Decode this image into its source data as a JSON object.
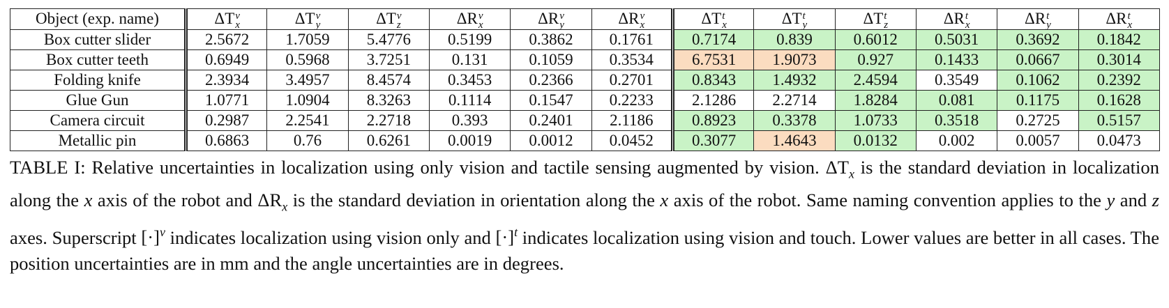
{
  "table": {
    "name_header": "Object (exp. name)",
    "columns": [
      {
        "base": "ΔT",
        "sub": "x",
        "sup": "v"
      },
      {
        "base": "ΔT",
        "sub": "y",
        "sup": "v"
      },
      {
        "base": "ΔT",
        "sub": "z",
        "sup": "v"
      },
      {
        "base": "ΔR",
        "sub": "x",
        "sup": "v"
      },
      {
        "base": "ΔR",
        "sub": "y",
        "sup": "v"
      },
      {
        "base": "ΔR",
        "sub": "x",
        "sup": "v"
      },
      {
        "base": "ΔT",
        "sub": "x",
        "sup": "t"
      },
      {
        "base": "ΔT",
        "sub": "y",
        "sup": "t"
      },
      {
        "base": "ΔT",
        "sub": "z",
        "sup": "t"
      },
      {
        "base": "ΔR",
        "sub": "x",
        "sup": "t"
      },
      {
        "base": "ΔR",
        "sub": "y",
        "sup": "t"
      },
      {
        "base": "ΔR",
        "sub": "x",
        "sup": "t"
      }
    ],
    "rows": [
      {
        "name": "Box cutter slider",
        "values": [
          "2.5672",
          "1.7059",
          "5.4776",
          "0.5199",
          "0.3862",
          "0.1761",
          "0.7174",
          "0.839",
          "0.6012",
          "0.5031",
          "0.3692",
          "0.1842"
        ],
        "highlight": [
          "",
          "",
          "",
          "",
          "",
          "",
          "good",
          "good",
          "good",
          "good",
          "good",
          "good"
        ]
      },
      {
        "name": "Box cutter teeth",
        "values": [
          "0.6949",
          "0.5968",
          "3.7251",
          "0.131",
          "0.1059",
          "0.3534",
          "6.7531",
          "1.9073",
          "0.927",
          "0.1433",
          "0.0667",
          "0.3014"
        ],
        "highlight": [
          "",
          "",
          "",
          "",
          "",
          "",
          "bad",
          "bad",
          "good",
          "good",
          "good",
          "good"
        ]
      },
      {
        "name": "Folding knife",
        "values": [
          "2.3934",
          "3.4957",
          "8.4574",
          "0.3453",
          "0.2366",
          "0.2701",
          "0.8343",
          "1.4932",
          "2.4594",
          "0.3549",
          "0.1062",
          "0.2392"
        ],
        "highlight": [
          "",
          "",
          "",
          "",
          "",
          "",
          "good",
          "good",
          "good",
          "",
          "good",
          "good"
        ]
      },
      {
        "name": "Glue Gun",
        "values": [
          "1.0771",
          "1.0904",
          "8.3263",
          "0.1114",
          "0.1547",
          "0.2233",
          "2.1286",
          "2.2714",
          "1.8284",
          "0.081",
          "0.1175",
          "0.1628"
        ],
        "highlight": [
          "",
          "",
          "",
          "",
          "",
          "",
          "",
          "",
          "good",
          "good",
          "good",
          "good"
        ]
      },
      {
        "name": "Camera circuit",
        "values": [
          "0.2987",
          "2.2541",
          "2.2718",
          "0.393",
          "0.2401",
          "2.1186",
          "0.8923",
          "0.3378",
          "1.0733",
          "0.3518",
          "0.2725",
          "0.5157"
        ],
        "highlight": [
          "",
          "",
          "",
          "",
          "",
          "",
          "good",
          "good",
          "good",
          "good",
          "",
          "good"
        ]
      },
      {
        "name": "Metallic pin",
        "values": [
          "0.6863",
          "0.76",
          "0.6261",
          "0.0019",
          "0.0012",
          "0.0452",
          "0.3077",
          "1.4643",
          "0.0132",
          "0.002",
          "0.0057",
          "0.0473"
        ],
        "highlight": [
          "",
          "",
          "",
          "",
          "",
          "",
          "good",
          "bad",
          "good",
          "",
          "",
          ""
        ]
      }
    ],
    "colors": {
      "good": "#c9f3c6",
      "bad": "#fbdcc0"
    }
  },
  "caption": {
    "label": "TABLE I:",
    "p1": " Relative uncertainties in localization using only vision and tactile sensing augmented by vision. ",
    "m1": "ΔT",
    "m1sub": "x",
    "p2": " is the standard deviation in localization along the ",
    "m2": "x",
    "p3": " axis of the robot and ",
    "m3": "ΔR",
    "m3sub": "x",
    "p4": " is the standard deviation in orientation along the ",
    "m4": "x",
    "p5": " axis of the robot. Same naming convention applies to the ",
    "m5": "y",
    "p6": " and ",
    "m6": "z",
    "p7": " axes. Superscript ",
    "m7": "[·]",
    "m7sup": "v",
    "p8": " indicates localization using vision only and ",
    "m8": "[·]",
    "m8sup": "t",
    "p9": " indicates localization using vision and touch. Lower values are better in all cases. The position uncertainties are in mm and the angle uncertainties are in degrees."
  }
}
